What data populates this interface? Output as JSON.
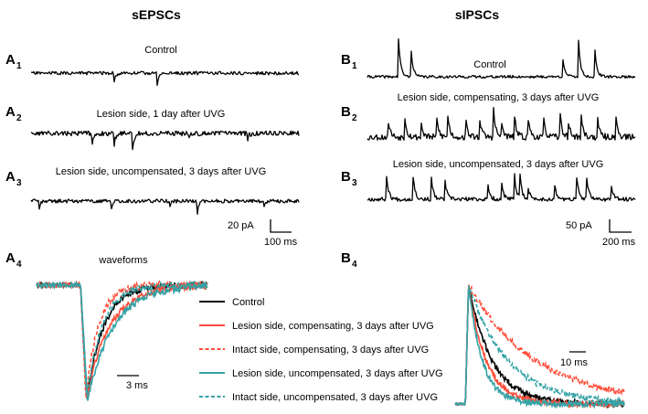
{
  "figure": {
    "columns": {
      "left": "sEPSCs",
      "right": "sIPSCs"
    },
    "panels": {
      "A1": {
        "letter": "A",
        "sub": "1",
        "label": "Control"
      },
      "A2": {
        "letter": "A",
        "sub": "2",
        "label": "Lesion side, 1 day after UVG"
      },
      "A3": {
        "letter": "A",
        "sub": "3",
        "label": "Lesion side, uncompensated, 3 days after UVG"
      },
      "A4": {
        "letter": "A",
        "sub": "4",
        "label": "waveforms"
      },
      "B1": {
        "letter": "B",
        "sub": "1",
        "label": "Control"
      },
      "B2": {
        "letter": "B",
        "sub": "2",
        "label": "Lesion side, compensating, 3 days after UVG"
      },
      "B3": {
        "letter": "B",
        "sub": "3",
        "label": "Lesion side, uncompensated, 3 days after UVG"
      },
      "B4": {
        "letter": "B",
        "sub": "4",
        "label": ""
      }
    },
    "scale_bars": {
      "epsc_amplitude": "20 pA",
      "epsc_time": "100 ms",
      "ipsc_amplitude": "50 pA",
      "ipsc_time": "200 ms",
      "epsc_waveform_time": "3 ms",
      "ipsc_waveform_time": "10 ms"
    }
  },
  "chart_data": [
    {
      "type": "line",
      "panel": "A1",
      "title": "Control",
      "description": "sEPSC trace; inward (downward) events at these fractions of the sweep",
      "event_times": [
        0.31,
        0.47
      ],
      "event_amplitudes": [
        10,
        14
      ]
    },
    {
      "type": "line",
      "panel": "A2",
      "title": "Lesion side, 1 day after UVG",
      "event_times": [
        0.23,
        0.31,
        0.38,
        0.59,
        0.81
      ],
      "event_amplitudes": [
        14,
        12,
        20,
        6,
        6
      ]
    },
    {
      "type": "line",
      "panel": "A3",
      "title": "Lesion side, uncompensated, 3 days after UVG",
      "event_times": [
        0.03,
        0.3,
        0.52,
        0.62,
        0.87
      ],
      "event_amplitudes": [
        8,
        8,
        6,
        14,
        8
      ]
    },
    {
      "type": "line",
      "panel": "B1",
      "title": "Control",
      "description": "sIPSC trace; outward (upward) events",
      "event_times": [
        0.115,
        0.165,
        0.73,
        0.79,
        0.85
      ],
      "event_amplitudes": [
        42,
        28,
        20,
        40,
        28
      ]
    },
    {
      "type": "line",
      "panel": "B2",
      "title": "Lesion side, compensating, 3 days after UVG",
      "event_times": [
        0.08,
        0.14,
        0.2,
        0.26,
        0.3,
        0.37,
        0.42,
        0.47,
        0.5,
        0.55,
        0.6,
        0.66,
        0.72,
        0.75,
        0.8,
        0.86,
        0.93
      ],
      "event_amplitudes": [
        18,
        22,
        14,
        20,
        24,
        16,
        20,
        30,
        14,
        22,
        20,
        18,
        24,
        16,
        22,
        18,
        20
      ]
    },
    {
      "type": "line",
      "panel": "B3",
      "title": "Lesion side, uncompensated, 3 days after UVG",
      "event_times": [
        0.07,
        0.17,
        0.24,
        0.29,
        0.45,
        0.5,
        0.55,
        0.57,
        0.6,
        0.7,
        0.78,
        0.82,
        0.91
      ],
      "event_amplitudes": [
        26,
        26,
        22,
        20,
        14,
        16,
        26,
        24,
        12,
        14,
        24,
        24,
        14
      ]
    },
    {
      "type": "line",
      "panel": "A4",
      "title": "waveforms",
      "description": "Normalized averaged sEPSC waveforms (peak = -1)",
      "series": [
        {
          "name": "Control",
          "color": "#000000",
          "dash": "solid",
          "rise_ms": 0.8,
          "decay_tau_ms": 2.2
        },
        {
          "name": "Lesion side, compensating, 3 days after UVG",
          "color": "#ff4d3a",
          "dash": "solid",
          "rise_ms": 0.8,
          "decay_tau_ms": 3.0
        },
        {
          "name": "Intact side, compensating, 3 days after UVG",
          "color": "#ff4d3a",
          "dash": "dashed",
          "rise_ms": 0.7,
          "decay_tau_ms": 1.6
        },
        {
          "name": "Lesion side, uncompensated, 3 days after UVG",
          "color": "#35a3a6",
          "dash": "solid",
          "rise_ms": 0.9,
          "decay_tau_ms": 3.4
        },
        {
          "name": "Intact side, uncompensated, 3 days after UVG",
          "color": "#35a3a6",
          "dash": "dashed",
          "rise_ms": 0.8,
          "decay_tau_ms": 2.0
        }
      ]
    },
    {
      "type": "line",
      "panel": "B4",
      "title": "",
      "description": "Normalized averaged sIPSC waveforms (peak = 1)",
      "series": [
        {
          "name": "Control",
          "color": "#000000",
          "dash": "solid",
          "decay_tau_ms": 6.0
        },
        {
          "name": "Lesion side, compensating, 3 days after UVG",
          "color": "#ff4d3a",
          "dash": "solid",
          "decay_tau_ms": 4.5
        },
        {
          "name": "Intact side, compensating, 3 days after UVG",
          "color": "#ff4d3a",
          "dash": "dashed",
          "decay_tau_ms": 17.0
        },
        {
          "name": "Lesion side, uncompensated, 3 days after UVG",
          "color": "#35a3a6",
          "dash": "solid",
          "decay_tau_ms": 3.5
        },
        {
          "name": "Intact side, uncompensated, 3 days after UVG",
          "color": "#35a3a6",
          "dash": "dashed",
          "decay_tau_ms": 10.0
        }
      ]
    }
  ]
}
